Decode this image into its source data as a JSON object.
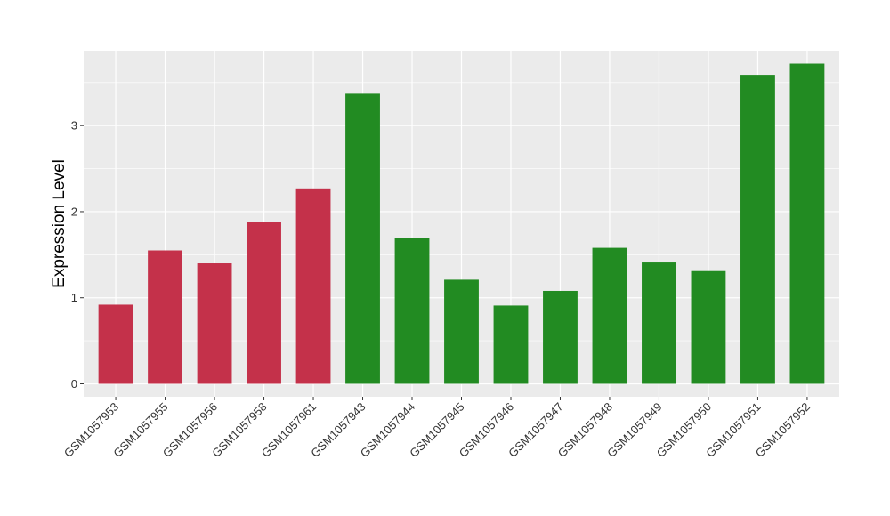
{
  "chart_data": {
    "type": "bar",
    "title": "",
    "xlabel": "",
    "ylabel": "Expression Level",
    "ylim": [
      -0.15,
      3.87
    ],
    "yticks": [
      0,
      1,
      2,
      3
    ],
    "ytick_labels": [
      "0",
      "1",
      "2",
      "3"
    ],
    "grid": true,
    "legend": "none",
    "categories": [
      "GSM1057953",
      "GSM1057955",
      "GSM1057956",
      "GSM1057958",
      "GSM1057961",
      "GSM1057943",
      "GSM1057944",
      "GSM1057945",
      "GSM1057946",
      "GSM1057947",
      "GSM1057948",
      "GSM1057949",
      "GSM1057950",
      "GSM1057951",
      "GSM1057952"
    ],
    "values": [
      0.92,
      1.55,
      1.4,
      1.88,
      2.27,
      3.37,
      1.69,
      1.21,
      0.91,
      1.08,
      1.58,
      1.41,
      1.31,
      3.59,
      3.72
    ],
    "bar_colors": [
      "#c4314a",
      "#c4314a",
      "#c4314a",
      "#c4314a",
      "#c4314a",
      "#228b22",
      "#228b22",
      "#228b22",
      "#228b22",
      "#228b22",
      "#228b22",
      "#228b22",
      "#228b22",
      "#228b22",
      "#228b22"
    ],
    "panel_background": "#ebebeb",
    "grid_color": "#ffffff"
  }
}
